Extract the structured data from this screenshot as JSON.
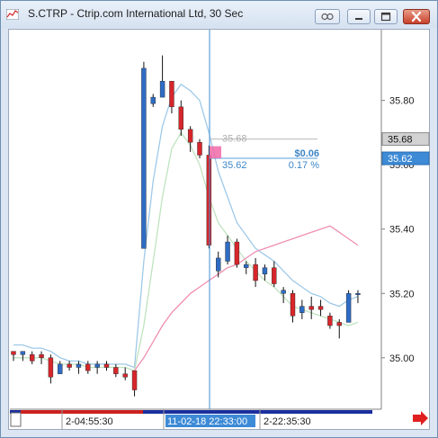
{
  "window": {
    "title": "S.CTRP - Ctrip.com International Ltd, 30 Sec",
    "icons": [
      "chart-app-icon",
      "link-icon",
      "minimize-icon",
      "restore-icon",
      "close-icon"
    ]
  },
  "colors": {
    "bull": "#2e6cc4",
    "bear": "#d7262b",
    "ma_fast": "#9fc9e8",
    "ma_mid": "#bfe3bf",
    "ma_slow": "#ee8fb3",
    "cursor": "#3f8fd0",
    "measure": "#f06aa8"
  },
  "chart_data": {
    "type": "candlestick",
    "symbol": "S.CTRP",
    "ylim": [
      34.84,
      36.02
    ],
    "y_ticks": [
      35.8,
      35.6,
      35.4,
      35.2,
      35.0
    ],
    "y_tick_labels": [
      "35.80",
      "35.60",
      "35.40",
      "35.20",
      "35.00"
    ],
    "x_labels": [
      "2-04:55:30",
      "11-02-18 22:33:00",
      "2-22:35:30"
    ],
    "price_labels": [
      {
        "value": 35.68,
        "text": "35.68",
        "style": "gray"
      },
      {
        "value": 35.62,
        "text": "35.62",
        "style": "blue"
      }
    ],
    "measure": {
      "from_price": 35.68,
      "to_price": 35.62,
      "from_text": "35.68",
      "to_text": "35.62",
      "change_text": "$0.06",
      "pct_text": "0.17 %"
    },
    "candles": [
      {
        "o": 35.02,
        "h": 35.02,
        "l": 34.99,
        "c": 35.01
      },
      {
        "o": 35.01,
        "h": 35.02,
        "l": 34.99,
        "c": 35.02
      },
      {
        "o": 35.01,
        "h": 35.02,
        "l": 34.98,
        "c": 34.99
      },
      {
        "o": 35.01,
        "h": 35.02,
        "l": 34.98,
        "c": 35.0
      },
      {
        "o": 35.0,
        "h": 35.01,
        "l": 34.92,
        "c": 34.94
      },
      {
        "o": 34.95,
        "h": 34.99,
        "l": 34.95,
        "c": 34.98
      },
      {
        "o": 34.98,
        "h": 34.99,
        "l": 34.96,
        "c": 34.97
      },
      {
        "o": 34.97,
        "h": 34.99,
        "l": 34.95,
        "c": 34.98
      },
      {
        "o": 34.98,
        "h": 34.99,
        "l": 34.95,
        "c": 34.96
      },
      {
        "o": 34.97,
        "h": 34.99,
        "l": 34.95,
        "c": 34.98
      },
      {
        "o": 34.98,
        "h": 34.99,
        "l": 34.96,
        "c": 34.97
      },
      {
        "o": 34.97,
        "h": 34.98,
        "l": 34.94,
        "c": 34.95
      },
      {
        "o": 34.95,
        "h": 34.97,
        "l": 34.93,
        "c": 34.94
      },
      {
        "o": 34.96,
        "h": 34.96,
        "l": 34.88,
        "c": 34.9
      },
      {
        "o": 35.34,
        "h": 35.92,
        "l": 35.34,
        "c": 35.9
      },
      {
        "o": 35.79,
        "h": 35.82,
        "l": 35.78,
        "c": 35.81
      },
      {
        "o": 35.81,
        "h": 35.94,
        "l": 35.81,
        "c": 35.86
      },
      {
        "o": 35.86,
        "h": 35.86,
        "l": 35.76,
        "c": 35.78
      },
      {
        "o": 35.78,
        "h": 35.8,
        "l": 35.69,
        "c": 35.71
      },
      {
        "o": 35.71,
        "h": 35.72,
        "l": 35.64,
        "c": 35.67
      },
      {
        "o": 35.67,
        "h": 35.68,
        "l": 35.62,
        "c": 35.63
      },
      {
        "o": 35.63,
        "h": 35.66,
        "l": 35.34,
        "c": 35.35
      },
      {
        "o": 35.27,
        "h": 35.33,
        "l": 35.25,
        "c": 35.31
      },
      {
        "o": 35.3,
        "h": 35.38,
        "l": 35.29,
        "c": 35.36
      },
      {
        "o": 35.36,
        "h": 35.37,
        "l": 35.28,
        "c": 35.29
      },
      {
        "o": 35.28,
        "h": 35.3,
        "l": 35.26,
        "c": 35.29
      },
      {
        "o": 35.29,
        "h": 35.31,
        "l": 35.22,
        "c": 35.24
      },
      {
        "o": 35.26,
        "h": 35.29,
        "l": 35.24,
        "c": 35.28
      },
      {
        "o": 35.28,
        "h": 35.3,
        "l": 35.22,
        "c": 35.23
      },
      {
        "o": 35.2,
        "h": 35.22,
        "l": 35.17,
        "c": 35.21
      },
      {
        "o": 35.2,
        "h": 35.21,
        "l": 35.11,
        "c": 35.13
      },
      {
        "o": 35.14,
        "h": 35.18,
        "l": 35.12,
        "c": 35.16
      },
      {
        "o": 35.16,
        "h": 35.19,
        "l": 35.12,
        "c": 35.15
      },
      {
        "o": 35.16,
        "h": 35.18,
        "l": 35.13,
        "c": 35.15
      },
      {
        "o": 35.13,
        "h": 35.14,
        "l": 35.09,
        "c": 35.1
      },
      {
        "o": 35.11,
        "h": 35.12,
        "l": 35.06,
        "c": 35.1
      },
      {
        "o": 35.11,
        "h": 35.21,
        "l": 35.11,
        "c": 35.2
      },
      {
        "o": 35.2,
        "h": 35.21,
        "l": 35.17,
        "c": 35.2
      }
    ],
    "ma_fast": [
      35.04,
      35.04,
      35.03,
      35.03,
      35.02,
      35.0,
      34.99,
      34.99,
      34.98,
      34.98,
      34.98,
      34.98,
      34.98,
      34.97,
      35.3,
      35.55,
      35.72,
      35.81,
      35.85,
      35.83,
      35.8,
      35.7,
      35.58,
      35.5,
      35.42,
      35.38,
      35.34,
      35.32,
      35.3,
      35.27,
      35.24,
      35.22,
      35.2,
      35.19,
      35.17,
      35.16,
      35.18,
      35.19
    ],
    "ma_mid": [
      35.0,
      35.0,
      35.0,
      35.0,
      34.99,
      34.98,
      34.98,
      34.98,
      34.97,
      34.97,
      34.97,
      34.97,
      34.97,
      34.96,
      35.1,
      35.3,
      35.5,
      35.65,
      35.7,
      35.66,
      35.6,
      35.5,
      35.42,
      35.38,
      35.34,
      35.3,
      35.27,
      35.24,
      35.22,
      35.19,
      35.16,
      35.15,
      35.14,
      35.13,
      35.12,
      35.11,
      35.1,
      35.11
    ],
    "ma_slow": [
      null,
      null,
      null,
      null,
      null,
      null,
      null,
      null,
      null,
      null,
      null,
      null,
      null,
      34.96,
      35.0,
      35.05,
      35.1,
      35.14,
      35.17,
      35.2,
      35.22,
      35.24,
      35.26,
      35.28,
      35.29,
      35.31,
      35.33,
      35.34,
      35.35,
      35.36,
      35.37,
      35.38,
      35.39,
      35.4,
      35.41,
      35.39,
      35.37,
      35.35
    ]
  }
}
